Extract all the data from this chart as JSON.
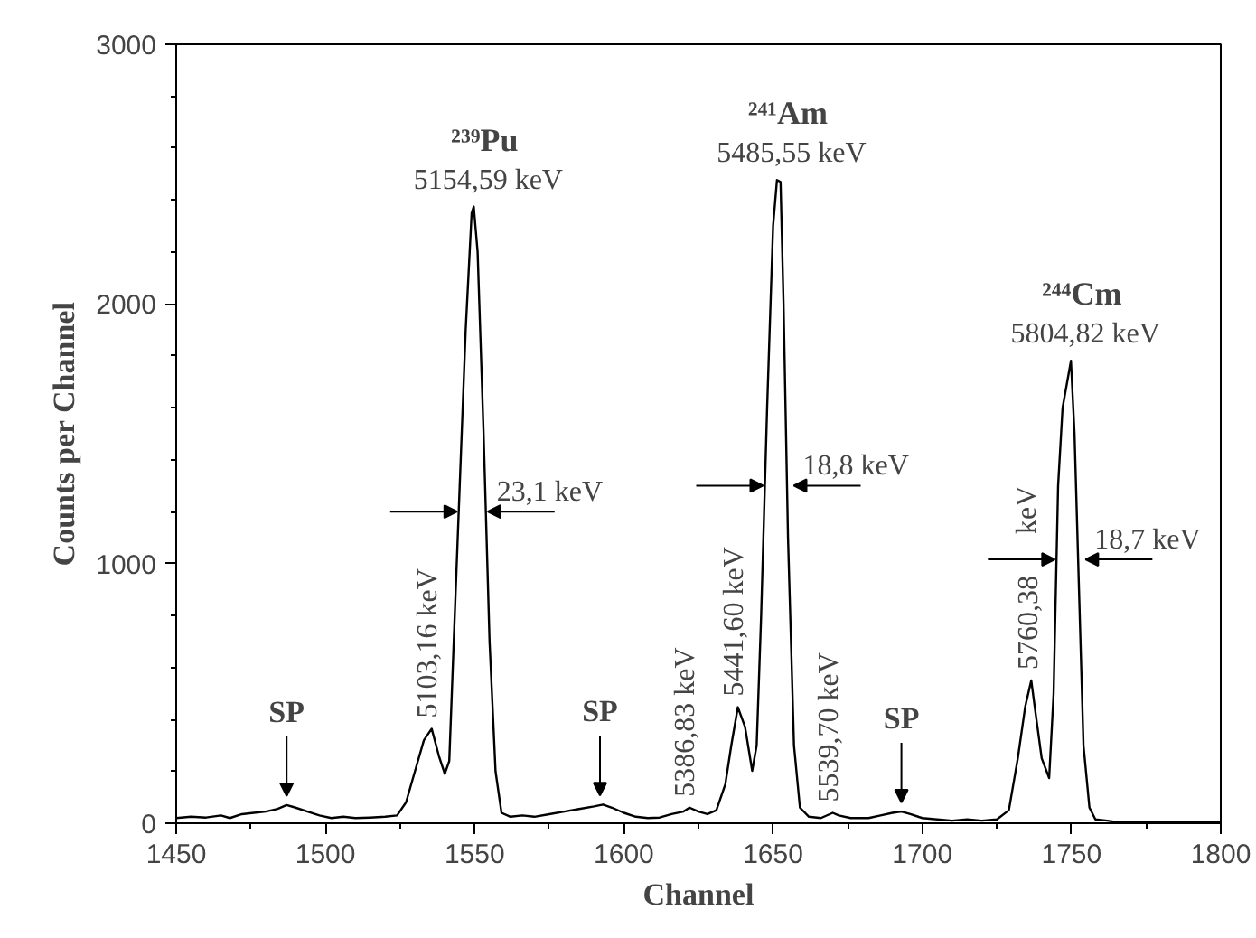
{
  "chart_data": {
    "type": "line",
    "xlabel": "Channel",
    "ylabel": "Counts per Channel",
    "xlim": [
      1450,
      1800
    ],
    "xticks": [
      1450,
      1500,
      1550,
      1600,
      1650,
      1700,
      1750,
      1800
    ],
    "ylim": [
      0,
      3000
    ],
    "yticks": [
      0,
      1000,
      2000,
      3000
    ],
    "grid": false,
    "marker": "none",
    "line_style": "solid",
    "series": [
      {
        "color": "#000000",
        "x": [
          1450,
          1455,
          1460,
          1465,
          1468,
          1472,
          1476,
          1480,
          1484,
          1487,
          1490,
          1494,
          1498,
          1502,
          1506,
          1510,
          1515,
          1520,
          1524,
          1527,
          1530,
          1533,
          1535.6,
          1538,
          1540,
          1541.5,
          1543,
          1545,
          1547,
          1549,
          1549.7,
          1551,
          1553,
          1555,
          1557,
          1559,
          1562,
          1566,
          1570,
          1575,
          1580,
          1585,
          1590,
          1593,
          1596,
          1600,
          1604,
          1608,
          1612,
          1616,
          1620,
          1622,
          1625,
          1628,
          1631,
          1634,
          1636,
          1638.2,
          1640.6,
          1643,
          1644.5,
          1646,
          1648,
          1650,
          1651.3,
          1652.5,
          1653.5,
          1655,
          1657,
          1659,
          1662,
          1666,
          1670,
          1672,
          1676,
          1682,
          1686,
          1690,
          1693,
          1696,
          1700,
          1705,
          1710,
          1715,
          1720,
          1725,
          1729,
          1732,
          1734.5,
          1736.5,
          1738,
          1740,
          1742.5,
          1744,
          1745.5,
          1747,
          1749.8,
          1751,
          1752.5,
          1754,
          1756,
          1758,
          1762,
          1765,
          1770,
          1780,
          1800
        ],
        "values": [
          20,
          25,
          22,
          30,
          20,
          35,
          40,
          45,
          55,
          70,
          60,
          45,
          30,
          20,
          25,
          20,
          22,
          25,
          30,
          80,
          200,
          320,
          364,
          260,
          190,
          240,
          700,
          1300,
          1900,
          2350,
          2375,
          2200,
          1500,
          700,
          200,
          40,
          25,
          30,
          25,
          35,
          45,
          55,
          65,
          72,
          60,
          40,
          25,
          20,
          22,
          35,
          45,
          60,
          45,
          35,
          50,
          150,
          300,
          447,
          371,
          202,
          300,
          800,
          1600,
          2300,
          2477,
          2470,
          2000,
          1100,
          300,
          60,
          25,
          20,
          40,
          30,
          20,
          20,
          30,
          40,
          45,
          35,
          20,
          15,
          10,
          15,
          10,
          15,
          50,
          250,
          450,
          550,
          420,
          250,
          174,
          500,
          1300,
          1600,
          1781,
          1500,
          900,
          300,
          60,
          15,
          10,
          5,
          5,
          3,
          3
        ]
      }
    ],
    "annotations": [
      {
        "text": "²³⁹Pu",
        "x": 1549.7,
        "y": 2375
      },
      {
        "text": "5154,59 keV",
        "x": 1549.7,
        "y": 2375
      },
      {
        "text": "²⁴¹Am",
        "x": 1651.3,
        "y": 2477
      },
      {
        "text": "5485,55 keV",
        "x": 1651.3,
        "y": 2477
      },
      {
        "text": "²⁴⁴Cm",
        "x": 1749.8,
        "y": 1781
      },
      {
        "text": "5804,82 keV",
        "x": 1749.8,
        "y": 1781
      },
      {
        "text": "5103,16 keV",
        "x": 1535.6,
        "y": 364
      },
      {
        "text": "5386,83 keV",
        "x": 1622,
        "y": 60
      },
      {
        "text": "5441,60 keV",
        "x": 1638.2,
        "y": 447
      },
      {
        "text": "5539,70 keV",
        "x": 1670,
        "y": 40
      },
      {
        "text": "5760,38",
        "x": 1736.5,
        "y": 550
      },
      {
        "text": "23,1 keV",
        "x": 1544.7,
        "y": 1200
      },
      {
        "text": "18,8 keV",
        "x": 1647.25,
        "y": 1300
      },
      {
        "text": "18,7 keV",
        "x": 1745,
        "y": 1016
      },
      "keV",
      {
        "text": "SP",
        "x": 1487,
        "y": 70
      },
      {
        "text": "SP",
        "x": 1592,
        "y": 72
      },
      {
        "text": "SP",
        "x": 1693,
        "y": 45
      }
    ]
  }
}
